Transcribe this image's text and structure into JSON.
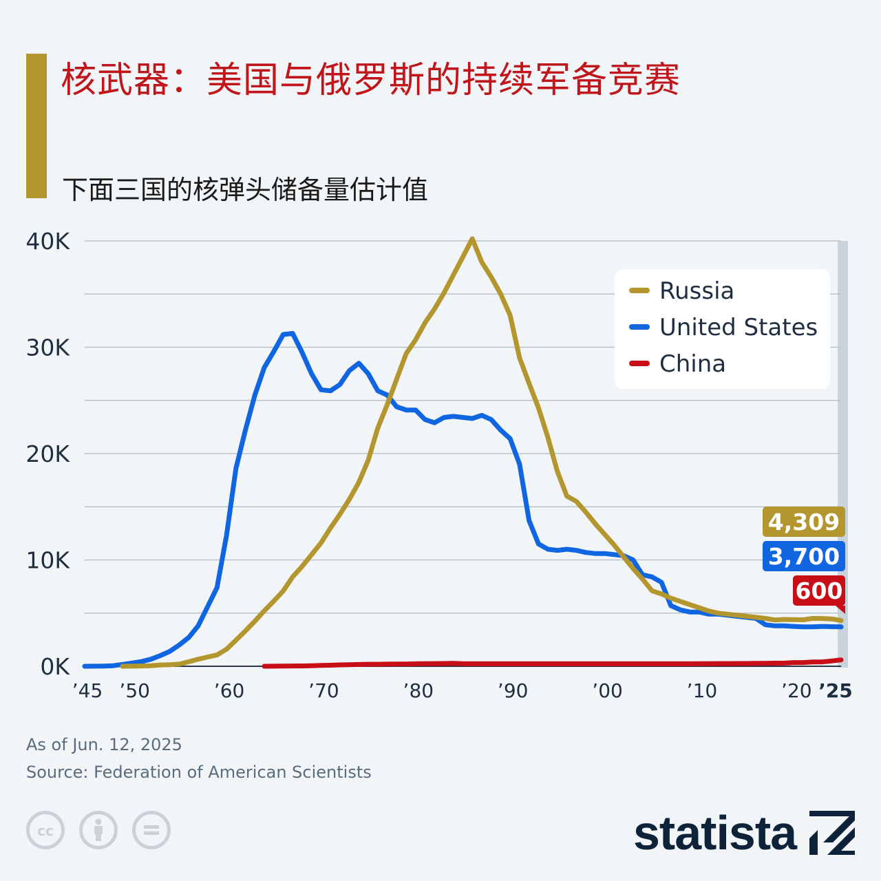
{
  "header": {
    "title": "核武器：美国与俄罗斯的持续军备竞赛",
    "subtitle": "下面三国的核弹头储备量估计值"
  },
  "footer": {
    "as_of": "As of Jun. 12, 2025",
    "source": "Source: Federation of American Scientists",
    "brand": "statista",
    "icons": [
      "cc-icon",
      "attribution-icon",
      "no-derivatives-icon"
    ]
  },
  "colors": {
    "accent": "#b4962f",
    "title": "#c0161b",
    "russia": "#b4962f",
    "united_states": "#0f66e0",
    "china": "#c80e16",
    "grid": "#b9c3cc",
    "axis_text": "#1e2e40",
    "brand": "#0e2239"
  },
  "chart_data": {
    "type": "line",
    "xlim": [
      1945,
      2025
    ],
    "ylim": [
      0,
      40000
    ],
    "y_ticks": [
      {
        "value": 0,
        "label": "0K"
      },
      {
        "value": 10000,
        "label": "10K"
      },
      {
        "value": 20000,
        "label": "20K"
      },
      {
        "value": 30000,
        "label": "30K"
      },
      {
        "value": 40000,
        "label": "40K"
      }
    ],
    "x_ticks": [
      {
        "value": 1945,
        "label": "’45"
      },
      {
        "value": 1950,
        "label": "’50"
      },
      {
        "value": 1960,
        "label": "’60"
      },
      {
        "value": 1970,
        "label": "’70"
      },
      {
        "value": 1980,
        "label": "’80"
      },
      {
        "value": 1990,
        "label": "’90"
      },
      {
        "value": 2000,
        "label": "’00"
      },
      {
        "value": 2010,
        "label": "’10"
      },
      {
        "value": 2020,
        "label": "’20"
      },
      {
        "value": 2025,
        "label": "’25",
        "bold": true
      }
    ],
    "grid": true,
    "legend_position": "top-right",
    "series": [
      {
        "name": "Russia",
        "color": "#b4962f",
        "end_label": "4,309",
        "points": [
          [
            1949,
            1
          ],
          [
            1950,
            5
          ],
          [
            1951,
            25
          ],
          [
            1952,
            50
          ],
          [
            1953,
            120
          ],
          [
            1954,
            150
          ],
          [
            1955,
            200
          ],
          [
            1956,
            420
          ],
          [
            1957,
            660
          ],
          [
            1958,
            870
          ],
          [
            1959,
            1060
          ],
          [
            1960,
            1600
          ],
          [
            1961,
            2450
          ],
          [
            1962,
            3320
          ],
          [
            1963,
            4240
          ],
          [
            1964,
            5220
          ],
          [
            1965,
            6130
          ],
          [
            1966,
            7090
          ],
          [
            1967,
            8400
          ],
          [
            1968,
            9400
          ],
          [
            1969,
            10500
          ],
          [
            1970,
            11600
          ],
          [
            1971,
            13000
          ],
          [
            1972,
            14300
          ],
          [
            1973,
            15700
          ],
          [
            1974,
            17300
          ],
          [
            1975,
            19400
          ],
          [
            1976,
            22400
          ],
          [
            1977,
            24600
          ],
          [
            1978,
            27000
          ],
          [
            1979,
            29400
          ],
          [
            1980,
            30700
          ],
          [
            1981,
            32300
          ],
          [
            1982,
            33600
          ],
          [
            1983,
            35100
          ],
          [
            1984,
            36800
          ],
          [
            1985,
            38500
          ],
          [
            1986,
            40200
          ],
          [
            1987,
            38000
          ],
          [
            1988,
            36600
          ],
          [
            1989,
            35000
          ],
          [
            1990,
            33000
          ],
          [
            1991,
            29000
          ],
          [
            1992,
            26600
          ],
          [
            1993,
            24300
          ],
          [
            1994,
            21500
          ],
          [
            1995,
            18300
          ],
          [
            1996,
            16000
          ],
          [
            1997,
            15500
          ],
          [
            1998,
            14500
          ],
          [
            1999,
            13400
          ],
          [
            2000,
            12400
          ],
          [
            2001,
            11400
          ],
          [
            2002,
            10300
          ],
          [
            2003,
            9200
          ],
          [
            2004,
            8200
          ],
          [
            2005,
            7100
          ],
          [
            2006,
            6800
          ],
          [
            2007,
            6400
          ],
          [
            2008,
            6100
          ],
          [
            2009,
            5800
          ],
          [
            2010,
            5500
          ],
          [
            2011,
            5200
          ],
          [
            2012,
            5000
          ],
          [
            2013,
            4900
          ],
          [
            2014,
            4800
          ],
          [
            2015,
            4700
          ],
          [
            2016,
            4600
          ],
          [
            2017,
            4500
          ],
          [
            2018,
            4350
          ],
          [
            2019,
            4400
          ],
          [
            2020,
            4380
          ],
          [
            2021,
            4370
          ],
          [
            2022,
            4500
          ],
          [
            2023,
            4490
          ],
          [
            2024,
            4450
          ],
          [
            2025,
            4309
          ]
        ]
      },
      {
        "name": "United States",
        "color": "#0f66e0",
        "end_label": "3,700",
        "points": [
          [
            1945,
            2
          ],
          [
            1946,
            9
          ],
          [
            1947,
            13
          ],
          [
            1948,
            50
          ],
          [
            1949,
            170
          ],
          [
            1950,
            300
          ],
          [
            1951,
            440
          ],
          [
            1952,
            660
          ],
          [
            1953,
            1000
          ],
          [
            1954,
            1400
          ],
          [
            1955,
            2000
          ],
          [
            1956,
            2700
          ],
          [
            1957,
            3800
          ],
          [
            1958,
            5600
          ],
          [
            1959,
            7400
          ],
          [
            1960,
            12300
          ],
          [
            1961,
            18600
          ],
          [
            1962,
            22200
          ],
          [
            1963,
            25500
          ],
          [
            1964,
            28100
          ],
          [
            1965,
            29600
          ],
          [
            1966,
            31200
          ],
          [
            1967,
            31300
          ],
          [
            1968,
            29500
          ],
          [
            1969,
            27500
          ],
          [
            1970,
            26000
          ],
          [
            1971,
            25900
          ],
          [
            1972,
            26500
          ],
          [
            1973,
            27800
          ],
          [
            1974,
            28500
          ],
          [
            1975,
            27500
          ],
          [
            1976,
            25900
          ],
          [
            1977,
            25500
          ],
          [
            1978,
            24400
          ],
          [
            1979,
            24100
          ],
          [
            1980,
            24100
          ],
          [
            1981,
            23200
          ],
          [
            1982,
            22900
          ],
          [
            1983,
            23400
          ],
          [
            1984,
            23500
          ],
          [
            1985,
            23400
          ],
          [
            1986,
            23300
          ],
          [
            1987,
            23600
          ],
          [
            1988,
            23200
          ],
          [
            1989,
            22200
          ],
          [
            1990,
            21400
          ],
          [
            1991,
            19000
          ],
          [
            1992,
            13700
          ],
          [
            1993,
            11500
          ],
          [
            1994,
            11000
          ],
          [
            1995,
            10900
          ],
          [
            1996,
            11000
          ],
          [
            1997,
            10900
          ],
          [
            1998,
            10700
          ],
          [
            1999,
            10600
          ],
          [
            2000,
            10600
          ],
          [
            2001,
            10500
          ],
          [
            2002,
            10400
          ],
          [
            2003,
            10000
          ],
          [
            2004,
            8600
          ],
          [
            2005,
            8400
          ],
          [
            2006,
            7900
          ],
          [
            2007,
            5700
          ],
          [
            2008,
            5300
          ],
          [
            2009,
            5100
          ],
          [
            2010,
            5100
          ],
          [
            2011,
            4900
          ],
          [
            2012,
            4900
          ],
          [
            2013,
            4800
          ],
          [
            2014,
            4700
          ],
          [
            2015,
            4600
          ],
          [
            2016,
            4500
          ],
          [
            2017,
            3900
          ],
          [
            2018,
            3800
          ],
          [
            2019,
            3800
          ],
          [
            2020,
            3750
          ],
          [
            2021,
            3700
          ],
          [
            2022,
            3700
          ],
          [
            2023,
            3750
          ],
          [
            2024,
            3720
          ],
          [
            2025,
            3700
          ]
        ]
      },
      {
        "name": "China",
        "color": "#c80e16",
        "end_label": "600",
        "points": [
          [
            1964,
            1
          ],
          [
            1965,
            5
          ],
          [
            1966,
            20
          ],
          [
            1967,
            25
          ],
          [
            1968,
            35
          ],
          [
            1969,
            50
          ],
          [
            1970,
            75
          ],
          [
            1971,
            100
          ],
          [
            1972,
            130
          ],
          [
            1973,
            150
          ],
          [
            1974,
            170
          ],
          [
            1975,
            185
          ],
          [
            1976,
            190
          ],
          [
            1977,
            200
          ],
          [
            1978,
            205
          ],
          [
            1979,
            210
          ],
          [
            1980,
            230
          ],
          [
            1981,
            240
          ],
          [
            1982,
            250
          ],
          [
            1983,
            260
          ],
          [
            1984,
            270
          ],
          [
            1985,
            240
          ],
          [
            1986,
            230
          ],
          [
            1987,
            230
          ],
          [
            1988,
            230
          ],
          [
            1989,
            235
          ],
          [
            1990,
            235
          ],
          [
            1991,
            235
          ],
          [
            1992,
            235
          ],
          [
            1993,
            235
          ],
          [
            1994,
            235
          ],
          [
            1995,
            235
          ],
          [
            1996,
            235
          ],
          [
            1997,
            235
          ],
          [
            1998,
            235
          ],
          [
            1999,
            235
          ],
          [
            2000,
            235
          ],
          [
            2001,
            235
          ],
          [
            2002,
            235
          ],
          [
            2003,
            235
          ],
          [
            2004,
            235
          ],
          [
            2005,
            235
          ],
          [
            2006,
            235
          ],
          [
            2007,
            235
          ],
          [
            2008,
            235
          ],
          [
            2009,
            235
          ],
          [
            2010,
            240
          ],
          [
            2011,
            240
          ],
          [
            2012,
            250
          ],
          [
            2013,
            250
          ],
          [
            2014,
            260
          ],
          [
            2015,
            260
          ],
          [
            2016,
            270
          ],
          [
            2017,
            280
          ],
          [
            2018,
            290
          ],
          [
            2019,
            300
          ],
          [
            2020,
            350
          ],
          [
            2021,
            350
          ],
          [
            2022,
            400
          ],
          [
            2023,
            410
          ],
          [
            2024,
            500
          ],
          [
            2025,
            600
          ]
        ]
      }
    ]
  }
}
